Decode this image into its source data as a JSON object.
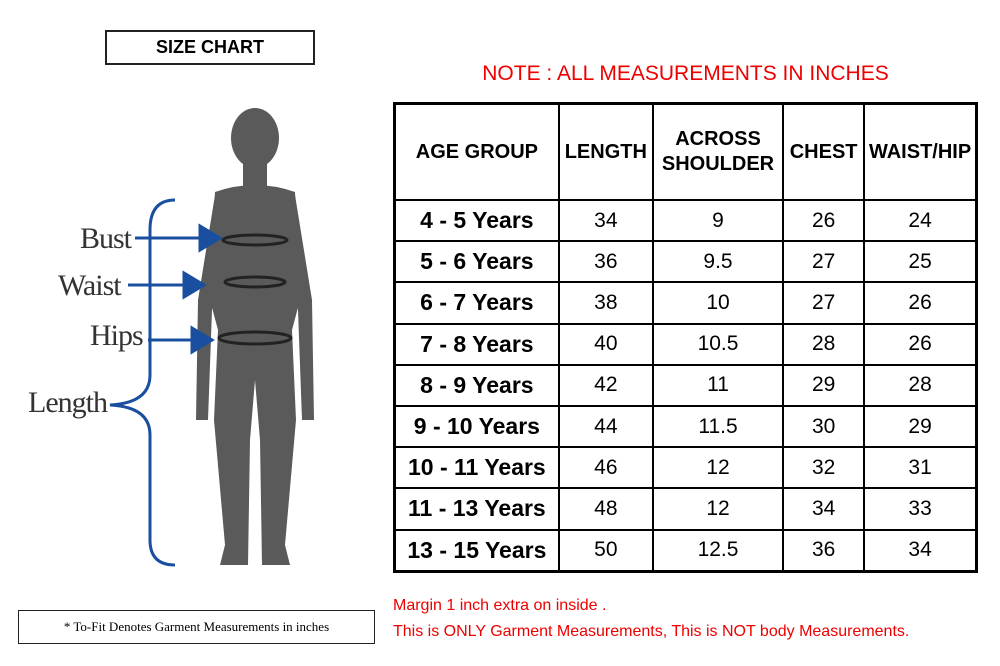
{
  "title": "SIZE CHART",
  "figure": {
    "labels": [
      "Bust",
      "Waist",
      "Hips",
      "Length"
    ]
  },
  "note": "NOTE : ALL MEASUREMENTS IN INCHES",
  "table": {
    "headers": [
      "AGE GROUP",
      "LENGTH",
      "ACROSS SHOULDER",
      "CHEST",
      "WAIST/HIP"
    ],
    "rows": [
      [
        "4 - 5 Years",
        34,
        9,
        26,
        24
      ],
      [
        "5 - 6 Years",
        36,
        9.5,
        27,
        25
      ],
      [
        "6 - 7 Years",
        38,
        10,
        27,
        26
      ],
      [
        "7 - 8 Years",
        40,
        10.5,
        28,
        26
      ],
      [
        "8 - 9 Years",
        42,
        11,
        29,
        28
      ],
      [
        "9 - 10 Years",
        44,
        11.5,
        30,
        29
      ],
      [
        "10 - 11 Years",
        46,
        12,
        32,
        31
      ],
      [
        "11 - 13 Years",
        48,
        12,
        34,
        33
      ],
      [
        "13 - 15 Years",
        50,
        12.5,
        36,
        34
      ]
    ]
  },
  "footnote": "* To-Fit Denotes Garment Measurements in inches",
  "remarks": [
    "Margin 1 inch extra on inside .",
    "This is ONLY Garment Measurements, This is NOT body Measurements."
  ]
}
